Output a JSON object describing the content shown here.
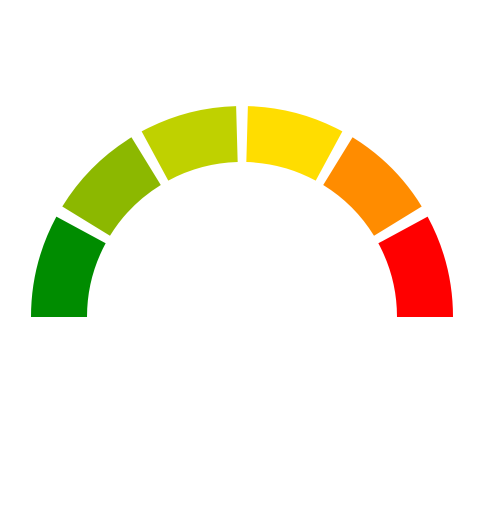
{
  "gauge": {
    "segments": [
      {
        "name": "segment-1",
        "color": "#008c00"
      },
      {
        "name": "segment-2",
        "color": "#8cb800"
      },
      {
        "name": "segment-3",
        "color": "#bfd100"
      },
      {
        "name": "segment-4",
        "color": "#ffdd00"
      },
      {
        "name": "segment-5",
        "color": "#ff8c00"
      },
      {
        "name": "segment-6",
        "color": "#ff0000"
      }
    ]
  }
}
